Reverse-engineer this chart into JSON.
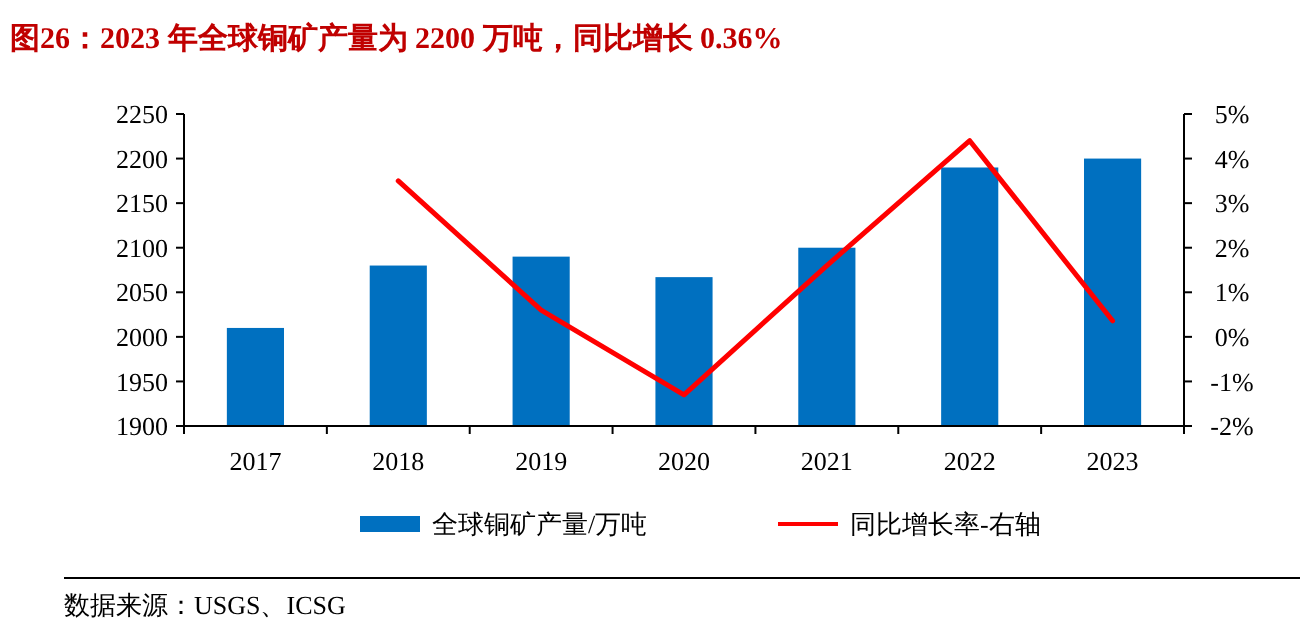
{
  "chart_data": {
    "type": "bar",
    "title": "图26：2023 年全球铜矿产量为 2200 万吨，同比增长 0.36%",
    "categories": [
      "2017",
      "2018",
      "2019",
      "2020",
      "2021",
      "2022",
      "2023"
    ],
    "series": [
      {
        "name": "全球铜矿产量/万吨",
        "color": "#0070c0",
        "values": [
          2010,
          2080,
          2090,
          2067,
          2100,
          2190,
          2200
        ]
      },
      {
        "name": "同比增长率-右轴",
        "type": "line",
        "axis": "y2",
        "color": "#ff0000",
        "values": [
          null,
          3.5,
          0.6,
          -1.3,
          1.6,
          4.4,
          0.36
        ]
      }
    ],
    "ylim": [
      1900,
      2250
    ],
    "yticks": [
      1900,
      1950,
      2000,
      2050,
      2100,
      2150,
      2200,
      2250
    ],
    "y2lim": [
      -2,
      5
    ],
    "y2ticks": [
      {
        "value": -2,
        "label": "-2%"
      },
      {
        "value": -1,
        "label": "-1%"
      },
      {
        "value": 0,
        "label": "0%"
      },
      {
        "value": 1,
        "label": "1%"
      },
      {
        "value": 2,
        "label": "2%"
      },
      {
        "value": 3,
        "label": "3%"
      },
      {
        "value": 4,
        "label": "4%"
      },
      {
        "value": 5,
        "label": "5%"
      }
    ],
    "legend": "bottom",
    "grid": false,
    "annotations": [
      "数据来源：USGS、ICSG"
    ]
  }
}
